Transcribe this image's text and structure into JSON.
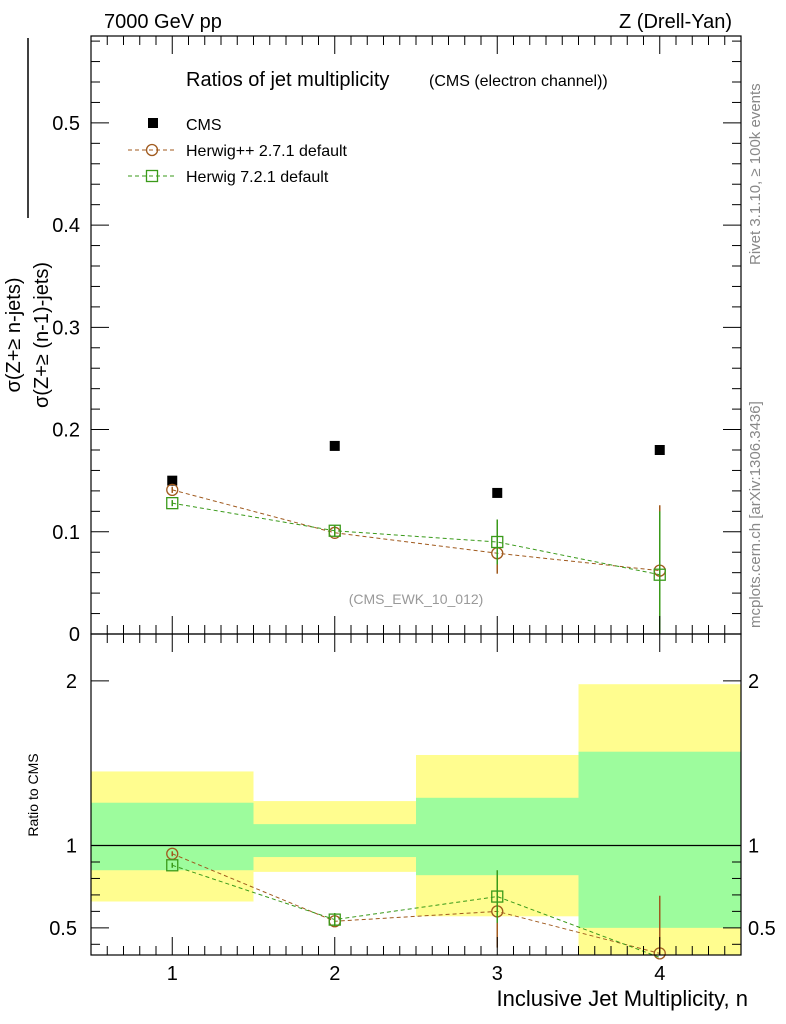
{
  "header": {
    "energy_label": "7000 GeV pp",
    "process_label": "Z (Drell-Yan)",
    "side_label_top": "Rivet 3.1.10, ≥ 100k events",
    "side_label_bottom": "mcplots.cern.ch [arXiv:1306.3436]"
  },
  "chart_data": [
    {
      "type": "scatter",
      "title": "Ratios of jet multiplicity",
      "subtitle": "(CMS (electron channel))",
      "ylabel_numerator": "σ(Z+≥ n-jets)",
      "ylabel_denominator": "σ(Z+≥ (n-1)-jets)",
      "watermark": "(CMS_EWK_10_012)",
      "xlim": [
        0.5,
        4.5
      ],
      "ylim": [
        0,
        0.585
      ],
      "yticks": [
        0.1,
        0.2,
        0.3,
        0.4,
        0.5
      ],
      "ytick_labels": [
        "0.1",
        "0.2",
        "0.3",
        "0.4",
        "0.5"
      ],
      "ylabel_zero": "0",
      "legend_position": "top-left",
      "series": [
        {
          "name": "CMS",
          "color": "#000000",
          "marker": "filled-square",
          "line": "none",
          "x": [
            1,
            2,
            3,
            4
          ],
          "y": [
            0.15,
            0.184,
            0.138,
            0.18
          ],
          "yerr": [
            0,
            0,
            0,
            0
          ]
        },
        {
          "name": "Herwig++ 2.7.1 default",
          "color": "#a05a1e",
          "marker": "open-circle",
          "line": "dashed",
          "x": [
            1,
            2,
            3,
            4
          ],
          "y": [
            0.141,
            0.099,
            0.079,
            0.062
          ],
          "yerr": [
            0.003,
            0.004,
            0.02,
            0.064
          ]
        },
        {
          "name": "Herwig 7.2.1 default",
          "color": "#3a9a1a",
          "marker": "open-square",
          "line": "dashed",
          "x": [
            1,
            2,
            3,
            4
          ],
          "y": [
            0.128,
            0.101,
            0.09,
            0.058
          ],
          "yerr": [
            0.003,
            0.005,
            0.022,
            0.062
          ]
        }
      ]
    },
    {
      "type": "scatter",
      "title": "",
      "ylabel": "Ratio to CMS",
      "xlabel": "Inclusive Jet Multiplicity, n",
      "xlim": [
        0.5,
        4.5
      ],
      "ylim": [
        0.335,
        2.285
      ],
      "xticks": [
        1,
        2,
        3,
        4
      ],
      "xtick_labels": [
        "1",
        "2",
        "3",
        "4"
      ],
      "yticks": [
        0.5,
        1,
        2
      ],
      "ytick_labels": [
        "0.5",
        "1",
        "2"
      ],
      "bands": [
        {
          "x0": 0.5,
          "x1": 1.5,
          "inner": [
            0.85,
            1.26
          ],
          "outer": [
            0.66,
            1.45
          ]
        },
        {
          "x0": 1.5,
          "x1": 2.5,
          "inner": [
            0.93,
            1.13
          ],
          "outer": [
            0.84,
            1.27
          ]
        },
        {
          "x0": 2.5,
          "x1": 3.5,
          "inner": [
            0.82,
            1.29
          ],
          "outer": [
            0.57,
            1.55
          ]
        },
        {
          "x0": 3.5,
          "x1": 4.5,
          "inner": [
            0.5,
            1.57
          ],
          "outer": [
            0.335,
            1.98
          ]
        }
      ],
      "inner_band_color": "#9dfc9d",
      "outer_band_color": "#fffd8f",
      "series": [
        {
          "name": "Herwig++ 2.7.1 default",
          "color": "#a05a1e",
          "marker": "open-circle",
          "x": [
            1,
            2,
            3,
            4
          ],
          "y": [
            0.95,
            0.54,
            0.6,
            0.345
          ],
          "yerr": [
            0.015,
            0.03,
            0.22,
            0.35
          ]
        },
        {
          "name": "Herwig 7.2.1 default",
          "color": "#3a9a1a",
          "marker": "open-square",
          "x": [
            1,
            2,
            3,
            4
          ],
          "y": [
            0.88,
            0.55,
            0.69,
            0.32
          ],
          "yerr": [
            0.015,
            0.04,
            0.16,
            0.35
          ]
        }
      ]
    }
  ]
}
